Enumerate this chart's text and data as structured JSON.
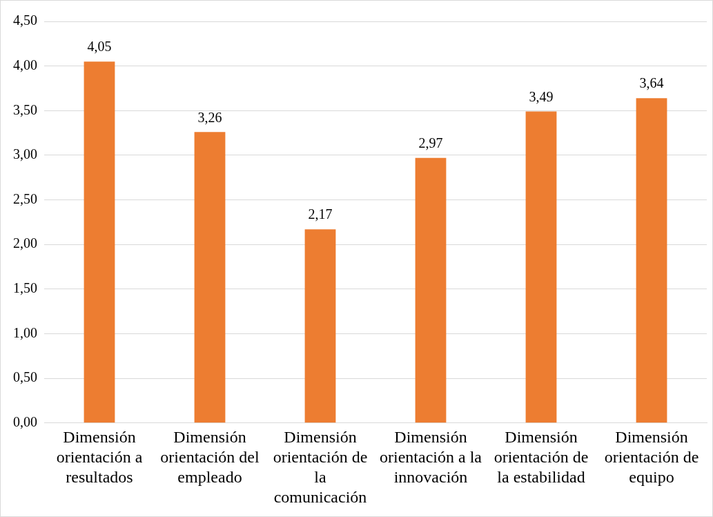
{
  "chart_data": {
    "type": "bar",
    "categories": [
      "Dimensión orientación a resultados",
      "Dimensión orientación del empleado",
      "Dimensión orientación de la comunicación",
      "Dimensión orientación a la innovación",
      "Dimensión orientación de la estabilidad",
      "Dimensión orientación de equipo"
    ],
    "values": [
      4.05,
      3.26,
      2.17,
      2.97,
      3.49,
      3.64
    ],
    "value_labels": [
      "4,05",
      "3,26",
      "2,17",
      "2,97",
      "3,49",
      "3,64"
    ],
    "color": "#ed7d31",
    "ylim": [
      0,
      4.5
    ],
    "yticks": [
      {
        "value": 0,
        "label": "0,00"
      },
      {
        "value": 0.5,
        "label": "0,50"
      },
      {
        "value": 1,
        "label": "1,00"
      },
      {
        "value": 1.5,
        "label": "1,50"
      },
      {
        "value": 2,
        "label": "2,00"
      },
      {
        "value": 2.5,
        "label": "2,50"
      },
      {
        "value": 3,
        "label": "3,00"
      },
      {
        "value": 3.5,
        "label": "3,50"
      },
      {
        "value": 4,
        "label": "4,00"
      },
      {
        "value": 4.5,
        "label": "4,50"
      }
    ],
    "grid": "y",
    "legend": false
  }
}
